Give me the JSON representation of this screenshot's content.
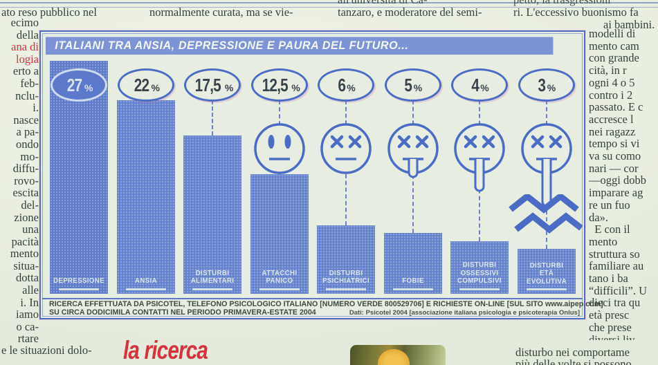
{
  "colors": {
    "bar_blue": "#6280cd",
    "title_bar_blue": "#7c94d6",
    "outline_blue": "#4a6cc4",
    "paper": "#e7eee1",
    "accent_red": "#d5323d",
    "ink": "#33423a",
    "percent_ink": "#39434b"
  },
  "top_strip": {
    "clipped_center": "all'università di Ca-",
    "clipped_right": "petto, la trasgressioni",
    "line1_left": "ato reso pubblico nel",
    "line1_center": "normalmente curata, ma se vie-",
    "line1_right": "tanzaro, e moderatore del semi-",
    "line1_far_right": "ri. L'eccessivo buonismo fa",
    "line2_far_right": "ai bambini."
  },
  "left_column": {
    "lines": [
      {
        "text": "ecimo"
      },
      {
        "text": "della"
      },
      {
        "text": "ana di",
        "red": true
      },
      {
        "text": "logia",
        "red": true
      },
      {
        "text": "erto a"
      },
      {
        "text": "feb-"
      },
      {
        "text": "nclu-"
      },
      {
        "text": "i."
      },
      {
        "text": "nasce"
      },
      {
        "text": "a pa-"
      },
      {
        "text": "ondo"
      },
      {
        "text": "mo-"
      },
      {
        "text": "diffu-"
      },
      {
        "text": "rovo-"
      },
      {
        "text": "escita"
      },
      {
        "text": "del-"
      },
      {
        "text": "zione"
      },
      {
        "text": "una"
      },
      {
        "text": "pacità"
      },
      {
        "text": "mento"
      },
      {
        "text": "situa-"
      },
      {
        "text": "dotta"
      },
      {
        "text": "alle"
      },
      {
        "text": "i. In"
      },
      {
        "text": "iamo"
      },
      {
        "text": "o ca-"
      },
      {
        "text": "rtare"
      }
    ],
    "bottom_line": "e le situazioni dolo-"
  },
  "right_column": {
    "lines": [
      "modelli di",
      "mento cam",
      "con grande",
      "cità, in r",
      "ogni 4 o 5",
      "contro i 2",
      "passato. E c",
      "accresce l",
      "nei ragazz",
      "tempo si vi",
      "va su como",
      "nari — cor",
      "—oggi dobb",
      "imparare ag",
      "re un fuo",
      "da».",
      "  E con il",
      "mento",
      "struttura so",
      "familiare au",
      "tano i ba",
      "“difficili”. U",
      "dieci tra qu",
      "età presc",
      "che prese",
      "diversi liv"
    ],
    "bottom_line1": "disturbo nei comportame",
    "bottom_line2": "più delle volte si possono"
  },
  "bottom_strip": {
    "red_label": "la ricerca"
  },
  "infographic": {
    "title": "ITALIANI TRA ANSIA, DEPRESSIONE E PAURA DEL FUTURO...",
    "footer": {
      "line1": "RICERCA EFFETTUATA DA PSICOTEL, TELEFONO PSICOLOGICO ITALIANO [NUMERO VERDE 800529706] E RICHIESTE ON-LINE [SUL SITO www.aipep.com]",
      "line2": "SU CIRCA DODICIMILA CONTATTI NEL PERIODO PRIMAVERA-ESTATE 2004",
      "credit": "Dati: Psicotel  2004 [associazione italiana psicologia e psicoterapia Onlus]"
    }
  },
  "chart_data": {
    "type": "bar",
    "title": "ITALIANI TRA ANSIA, DEPRESSIONE E PAURA DEL FUTURO...",
    "categories": [
      "DEPRESSIONE",
      "ANSIA",
      "DISTURBI ALIMENTARI",
      "ATTACCHI PANICO",
      "DISTURBI PSICHIATRICI",
      "FOBIE",
      "DISTURBI OSSESSIVI COMPULSIVI",
      "DISTURBI ETÀ EVOLUTIVA"
    ],
    "category_label_lines": [
      [
        "DEPRESSIONE"
      ],
      [
        "ANSIA"
      ],
      [
        "DISTURBI",
        "ALIMENTARI"
      ],
      [
        "ATTACCHI",
        "PANICO"
      ],
      [
        "DISTURBI",
        "PSICHIATRICI"
      ],
      [
        "FOBIE"
      ],
      [
        "DISTURBI",
        "OSSESSIVI",
        "COMPULSIVI"
      ],
      [
        "DISTURBI",
        "ETÀ",
        "EVOLUTIVA"
      ]
    ],
    "values": [
      27,
      22,
      17.5,
      12.5,
      6,
      5,
      4,
      3
    ],
    "value_labels": [
      "27%",
      "22%",
      "17,5%",
      "12,5%",
      "6%",
      "5%",
      "4%",
      "3%"
    ],
    "unit": "%",
    "faces": [
      "none",
      "none",
      "none",
      "staring",
      "x-plain",
      "x-tongue-short",
      "x-tongue-medium",
      "x-tongue-long"
    ],
    "ylim": [
      0,
      30
    ],
    "grid": false,
    "legend": "none",
    "source": "Psicotel 2004"
  }
}
